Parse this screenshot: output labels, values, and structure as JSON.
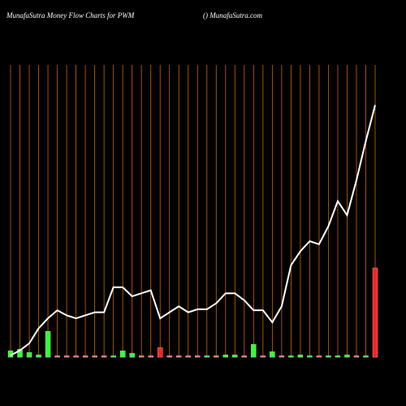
{
  "chart_data": {
    "type": "money-flow",
    "title": "MunafaSutra  Money Flow  Charts for PWM",
    "subtitle": "() MunafaSutra.com",
    "categories": [
      null,
      null,
      null,
      null,
      null,
      null,
      null,
      null,
      null,
      null,
      null,
      null,
      null,
      null,
      null,
      null,
      null,
      null,
      null,
      null,
      null,
      null,
      null,
      null,
      null,
      null,
      null,
      null,
      null,
      null,
      null,
      null,
      null,
      null,
      null,
      null,
      null,
      null,
      null,
      null
    ],
    "ylim": [
      0,
      300
    ],
    "series": [
      {
        "type": "bar",
        "values": [
          8,
          10,
          6,
          3,
          32,
          2,
          2,
          2,
          2,
          2,
          2,
          2,
          8,
          5,
          2,
          2,
          12,
          2,
          2,
          2,
          2,
          2,
          2,
          3,
          3,
          2,
          16,
          2,
          7,
          2,
          2,
          3,
          2,
          2,
          2,
          2,
          3,
          2,
          2,
          110
        ],
        "colors": [
          "#33ff33",
          "#33ff33",
          "#33ff33",
          "#33ff33",
          "#33ff33",
          "#ff6666",
          "#ff6666",
          "#ff6666",
          "#ff6666",
          "#ff6666",
          "#ff6666",
          "#33ff33",
          "#33ff33",
          "#33ff33",
          "#ff6666",
          "#ff6666",
          "#ff2222",
          "#ff6666",
          "#ff6666",
          "#ff6666",
          "#ff6666",
          "#33ff33",
          "#ff6666",
          "#33ff33",
          "#33ff33",
          "#ff6666",
          "#33ff33",
          "#ff6666",
          "#33ff33",
          "#ff6666",
          "#33ff33",
          "#33ff33",
          "#33ff33",
          "#ff6666",
          "#33ff33",
          "#33ff33",
          "#33ff33",
          "#ff6666",
          "#33ff33",
          "#ff2222"
        ]
      },
      {
        "type": "line",
        "color": "#ffffff",
        "values": [
          10,
          15,
          22,
          37,
          47,
          55,
          50,
          47,
          50,
          53,
          53,
          78,
          78,
          69,
          72,
          75,
          47,
          53,
          59,
          53,
          56,
          56,
          62,
          72,
          72,
          65,
          55,
          55,
          43,
          59,
          100,
          114,
          124,
          121,
          139,
          164,
          150,
          185,
          224,
          260
        ]
      }
    ],
    "line_color": "#cc6600"
  }
}
